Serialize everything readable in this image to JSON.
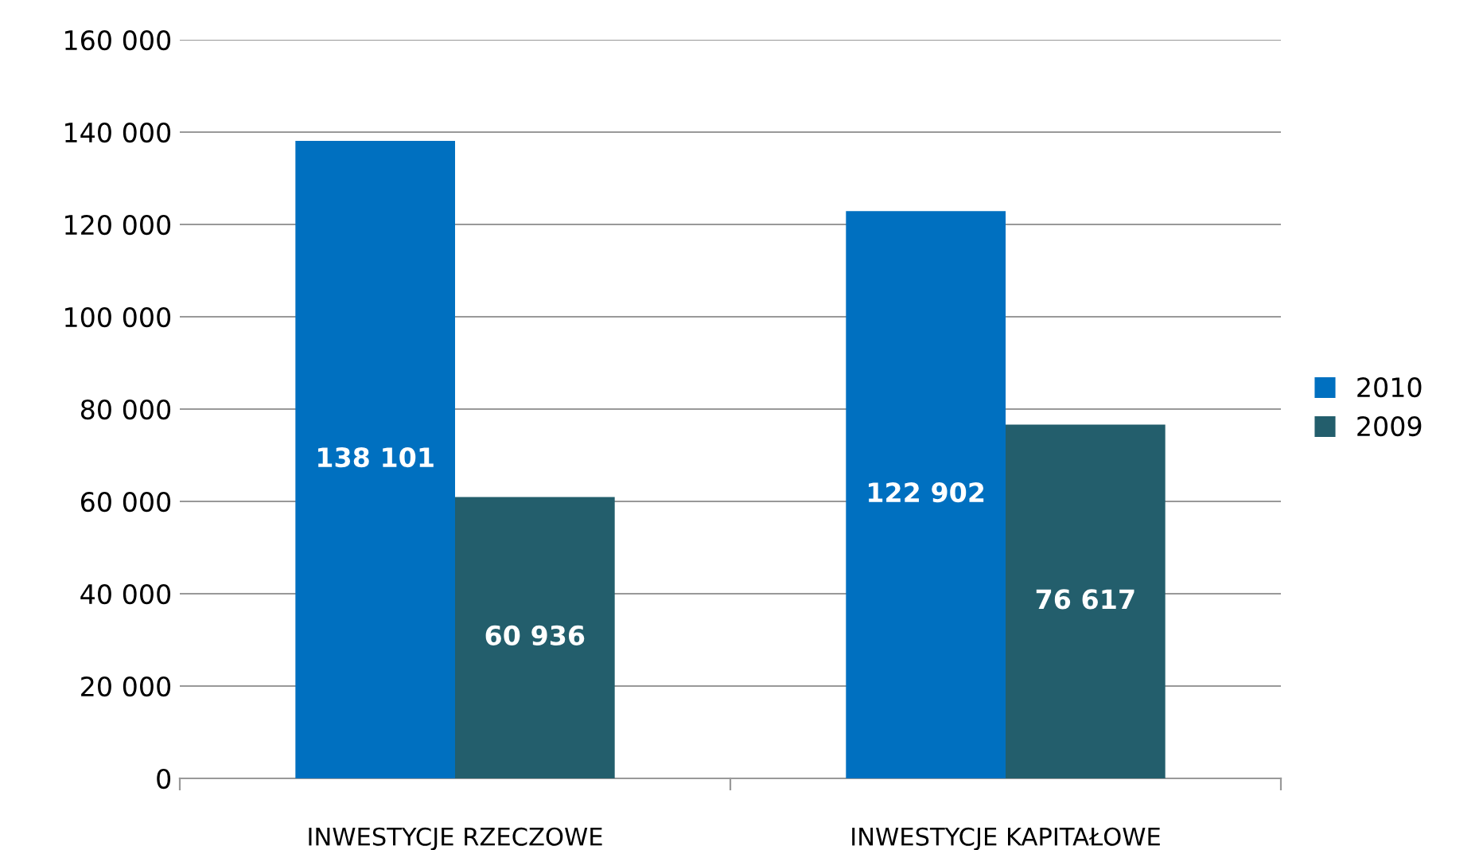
{
  "chart_data": {
    "type": "bar",
    "categories": [
      "INWESTYCJE RZECZOWE",
      "INWESTYCJE KAPITAŁOWE"
    ],
    "series": [
      {
        "name": "2010",
        "color": "#0070c0",
        "values": [
          138101,
          122902
        ],
        "value_labels": [
          "138 101",
          "122 902"
        ]
      },
      {
        "name": "2009",
        "color": "#235e6c",
        "values": [
          60936,
          76617
        ],
        "value_labels": [
          "60 936",
          "76 617"
        ]
      }
    ],
    "ylim": [
      0,
      160000
    ],
    "yticks": [
      0,
      {
        "value": 20000,
        "label": "20 000"
      },
      {
        "value": 40000,
        "label": "40 000"
      },
      {
        "value": 60000,
        "label": "60 000"
      },
      {
        "value": 80000,
        "label": "80 000"
      },
      {
        "value": 100000,
        "label": "100 000"
      },
      {
        "value": 120000,
        "label": "120 000"
      },
      {
        "value": 140000,
        "label": "140 000"
      },
      {
        "value": 160000,
        "label": "160 000"
      }
    ],
    "grid": "y",
    "legend": "right"
  }
}
